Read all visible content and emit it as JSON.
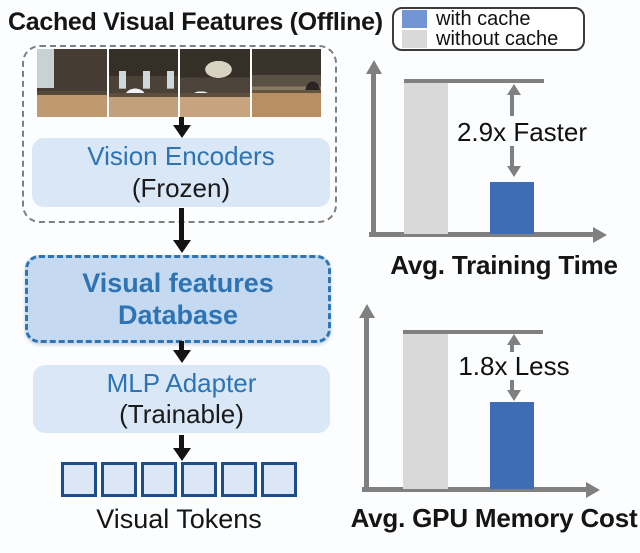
{
  "figure": {
    "title": "Cached Visual Features (Offline)"
  },
  "diagram": {
    "photos": {
      "count": 4,
      "description": "indoor living-room panorama segments"
    },
    "vision_encoders": {
      "line1": "Vision Encoders",
      "line2": "(Frozen)"
    },
    "database": {
      "line1": "Visual features",
      "line2": "Database"
    },
    "mlp_adapter": {
      "line1": "MLP Adapter",
      "line2": "(Trainable)"
    },
    "tokens": {
      "count": 6,
      "label": "Visual Tokens"
    }
  },
  "legend": {
    "items": [
      {
        "label": "with cache",
        "swatch_color": "#7296d4"
      },
      {
        "label": "without cache",
        "swatch_color": "#d9d9d9"
      }
    ]
  },
  "chart_data": [
    {
      "type": "bar",
      "title": "Avg. Training Time",
      "categories": [
        "without cache",
        "with cache"
      ],
      "values_relative": [
        2.9,
        1.0
      ],
      "annotation": "2.9x Faster",
      "series_colors": [
        "#d9d9d9",
        "#3e6cb5"
      ],
      "axis_tick_labels": "none",
      "grid": "off",
      "legend_position": "top-left-of-figure"
    },
    {
      "type": "bar",
      "title": "Avg. GPU Memory Cost",
      "categories": [
        "without cache",
        "with cache"
      ],
      "values_relative": [
        1.8,
        1.0
      ],
      "annotation": "1.8x Less",
      "series_colors": [
        "#d9d9d9",
        "#3e6cb5"
      ],
      "axis_tick_labels": "none",
      "grid": "off"
    }
  ],
  "colors": {
    "accent_blue_text": "#2e74b5",
    "light_blue_box": "#d9e7f6",
    "database_fill": "#c5d9f0",
    "database_border": "#2e75b6",
    "token_border": "#1e4d8c",
    "bar_blue": "#3e6cb5",
    "bar_gray": "#d9d9d9",
    "axis_gray": "#808080"
  }
}
